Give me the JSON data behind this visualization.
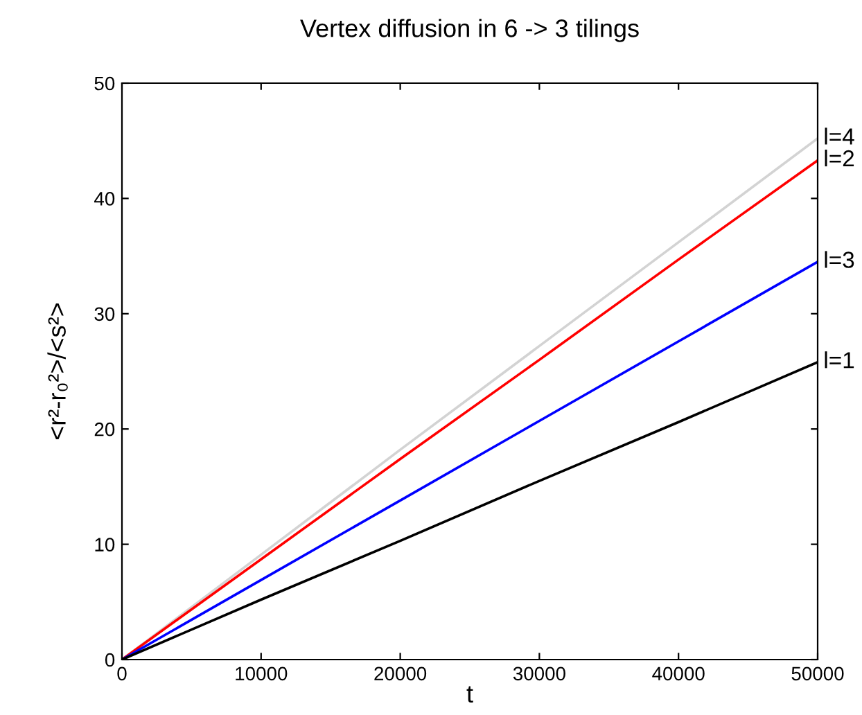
{
  "chart_data": {
    "type": "line",
    "title": "Vertex diffusion in 6 -> 3 tilings",
    "xlabel": "t",
    "ylabel": "<r²-r₀²>/<s²>",
    "xlim": [
      0,
      50000
    ],
    "ylim": [
      0,
      50
    ],
    "xticks": [
      0,
      10000,
      20000,
      30000,
      40000,
      50000
    ],
    "yticks": [
      0,
      10,
      20,
      30,
      40,
      50
    ],
    "grid": false,
    "legend": false,
    "x": [
      0,
      10000,
      20000,
      30000,
      40000,
      50000
    ],
    "series": [
      {
        "name": "l=4",
        "color": "#d3d3d3",
        "values": [
          0,
          9.1,
          18.2,
          27.2,
          36.2,
          45.2
        ]
      },
      {
        "name": "l=2",
        "color": "#ff0000",
        "values": [
          0,
          8.7,
          17.4,
          26.0,
          34.7,
          43.3
        ]
      },
      {
        "name": "l=3",
        "color": "#0000ff",
        "values": [
          0,
          6.9,
          13.8,
          20.7,
          27.6,
          34.5
        ]
      },
      {
        "name": "l=1",
        "color": "#000000",
        "values": [
          0,
          5.2,
          10.3,
          15.5,
          20.6,
          25.8
        ]
      }
    ]
  }
}
